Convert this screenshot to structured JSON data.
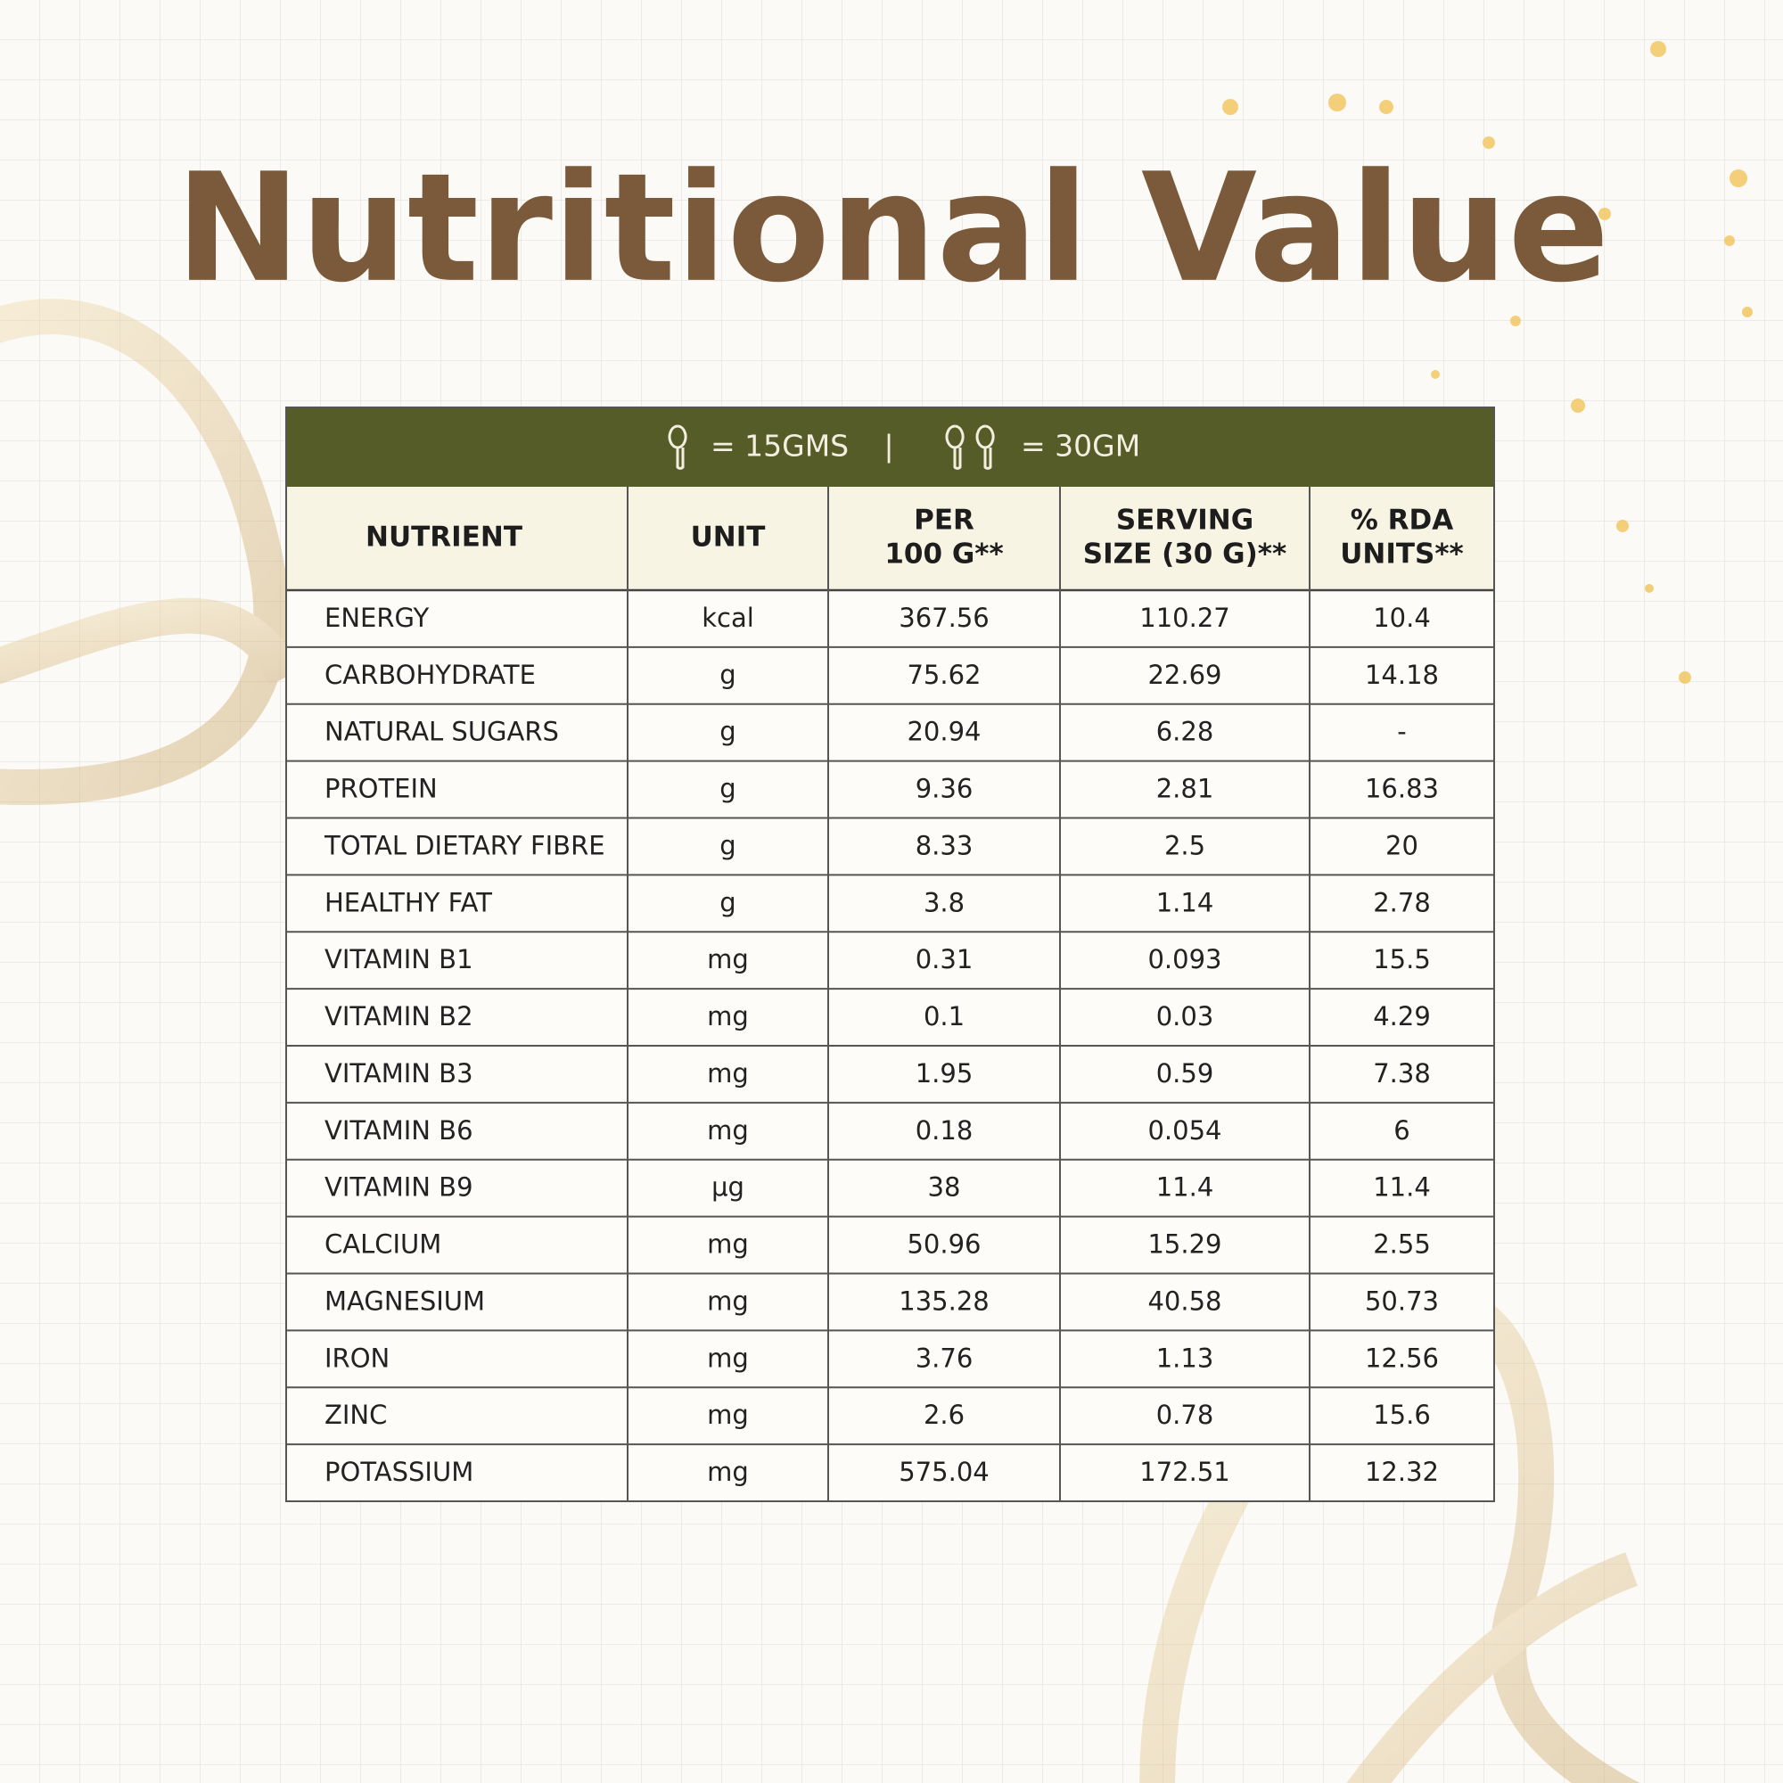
{
  "title": "Nutritional Value",
  "legend": {
    "single": "= 15GMS",
    "separator": "|",
    "double": "= 30GM"
  },
  "table": {
    "header": [
      [
        "NUTRIENT"
      ],
      [
        "UNIT"
      ],
      [
        "PER",
        "100 G**"
      ],
      [
        "SERVING",
        "SIZE (30 G)**"
      ],
      [
        "% RDA",
        "UNITS**"
      ]
    ],
    "rows": [
      [
        "ENERGY",
        "kcal",
        "367.56",
        "110.27",
        "10.4"
      ],
      [
        "CARBOHYDRATE",
        "g",
        "75.62",
        "22.69",
        "14.18"
      ],
      [
        "NATURAL SUGARS",
        "g",
        "20.94",
        "6.28",
        "-"
      ],
      [
        "PROTEIN",
        "g",
        "9.36",
        "2.81",
        "16.83"
      ],
      [
        "TOTAL DIETARY FIBRE",
        "g",
        "8.33",
        "2.5",
        "20"
      ],
      [
        "HEALTHY FAT",
        "g",
        "3.8",
        "1.14",
        "2.78"
      ],
      [
        "VITAMIN B1",
        "mg",
        "0.31",
        "0.093",
        "15.5"
      ],
      [
        "VITAMIN B2",
        "mg",
        "0.1",
        "0.03",
        "4.29"
      ],
      [
        "VITAMIN B3",
        "mg",
        "1.95",
        "0.59",
        "7.38"
      ],
      [
        "VITAMIN B6",
        "mg",
        "0.18",
        "0.054",
        "6"
      ],
      [
        "VITAMIN B9",
        "µg",
        "38",
        "11.4",
        "11.4"
      ],
      [
        "CALCIUM",
        "mg",
        "50.96",
        "15.29",
        "2.55"
      ],
      [
        "MAGNESIUM",
        "mg",
        "135.28",
        "40.58",
        "50.73"
      ],
      [
        "IRON",
        "mg",
        "3.76",
        "1.13",
        "12.56"
      ],
      [
        "ZINC",
        "mg",
        "2.6",
        "0.78",
        "15.6"
      ],
      [
        "POTASSIUM",
        "mg",
        "575.04",
        "172.51",
        "12.32"
      ]
    ]
  }
}
